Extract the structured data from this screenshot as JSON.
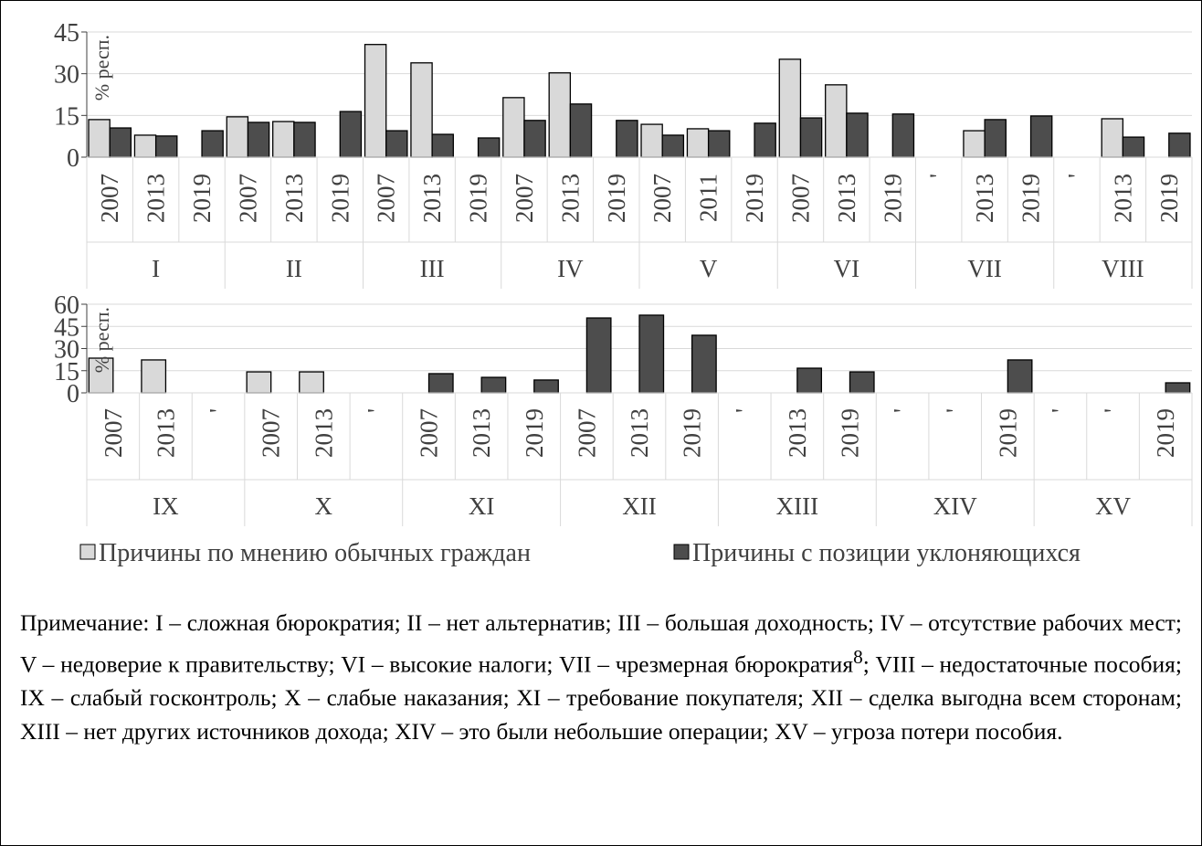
{
  "chart_data": [
    {
      "type": "bar",
      "y_label": "% респ.",
      "groups": [
        "I",
        "II",
        "III",
        "IV",
        "V",
        "VI",
        "VII",
        "VIII"
      ],
      "categories": [
        "2007",
        "2013",
        "2019",
        "2007",
        "2013",
        "2019",
        "2007",
        "2013",
        "2019",
        "2007",
        "2013",
        "2019",
        "2007",
        "2011",
        "2019",
        "2007",
        "2013",
        "2019",
        "'",
        "2013",
        "2019",
        "'",
        "2013",
        "2019"
      ],
      "series": [
        {
          "name": "Причины по мнению обычных граждан",
          "color": "#d9d9d9",
          "values": [
            13.5,
            7.9,
            null,
            14.5,
            12.8,
            null,
            40.5,
            33.9,
            null,
            21.4,
            30.3,
            null,
            11.8,
            10.2,
            null,
            35.2,
            26,
            null,
            null,
            9.5,
            null,
            null,
            13.8,
            null
          ]
        },
        {
          "name": "Причины с позиции уклоняющихся",
          "color": "#4d4d4d",
          "values": [
            10.5,
            7.6,
            9.5,
            12.5,
            12.5,
            16.4,
            9.5,
            8.2,
            6.9,
            13.2,
            19.1,
            13.2,
            7.9,
            9.5,
            12.2,
            14.1,
            15.8,
            15.5,
            null,
            13.5,
            14.8,
            null,
            7.2,
            8.6
          ]
        }
      ],
      "ylim": [
        0,
        45
      ],
      "yticks": [
        0,
        15,
        30,
        45
      ],
      "grid": true
    },
    {
      "type": "bar",
      "y_label": "% респ.",
      "groups": [
        "IX",
        "X",
        "XI",
        "XII",
        "XIII",
        "XIV",
        "XV"
      ],
      "categories": [
        "2007",
        "2013",
        "'",
        "2007",
        "2013",
        "'",
        "2007",
        "2013",
        "2019",
        "2007",
        "2013",
        "2019",
        "'",
        "2013",
        "2019",
        "'",
        "'",
        "2019",
        "'",
        "'",
        "2019"
      ],
      "series": [
        {
          "color": "#d9d9d9",
          "values": [
            23.5,
            22.3,
            null,
            14.2,
            14.2,
            null,
            null,
            null,
            null,
            null,
            null,
            null,
            null,
            null,
            null,
            null,
            null,
            null,
            null,
            null,
            null
          ]
        },
        {
          "color": "#4d4d4d",
          "values": [
            null,
            null,
            null,
            null,
            null,
            null,
            13,
            10.5,
            8.7,
            50.7,
            52.6,
            39,
            null,
            16.7,
            14.2,
            null,
            null,
            22.3,
            null,
            null,
            6.8
          ]
        }
      ],
      "ylim": [
        0,
        60
      ],
      "yticks": [
        0,
        15,
        30,
        45,
        60
      ],
      "grid": true
    }
  ],
  "note": {
    "before": "Примечание: I – сложная бюрократия; II – нет альтернатив; III – большая доходность; IV – отсутствие рабочих мест; V – недоверие к правительству; VI – высокие налоги; VII – чрезмерная бюрократия",
    "sup": "8",
    "after": "; VIII – недостаточные пособия; IX – слабый госконтроль; X – слабые наказания; XI – требование покупателя; XII – сделка выгодна всем сторонам; XIII – нет других источников дохода; XIV – это были небольшие операции; XV – угроза потери пособия."
  }
}
